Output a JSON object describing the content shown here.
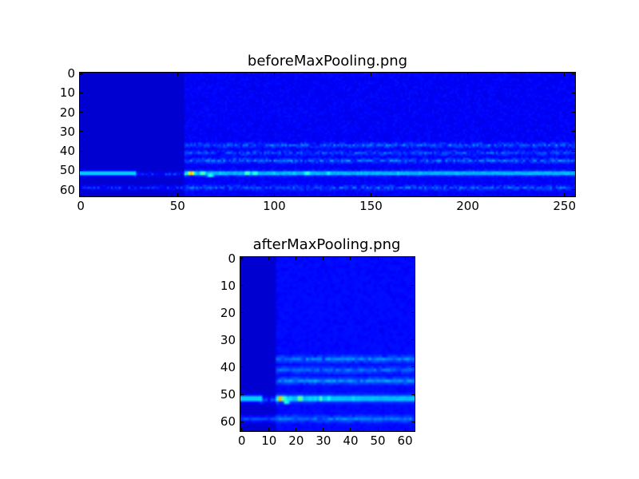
{
  "chart_data": [
    {
      "type": "heatmap",
      "title": "beforeMaxPooling.png",
      "colormap": "jet",
      "shape": [
        64,
        256
      ],
      "xlim": [
        -0.5,
        255.5
      ],
      "ylim": [
        63.5,
        -0.5
      ],
      "xticks": [
        0,
        50,
        100,
        150,
        200,
        250
      ],
      "yticks": [
        0,
        10,
        20,
        30,
        40,
        50,
        60
      ],
      "grid": false,
      "features": {
        "background": 0.08,
        "background_after_col": 54,
        "background_right": 0.12,
        "bands": [
          {
            "row": 51.5,
            "x_from": 0,
            "x_to": 28,
            "value": 0.38
          },
          {
            "row": 52,
            "x_from": 28,
            "x_to": 54,
            "value": 0.16
          },
          {
            "row": 51.5,
            "x_from": 54,
            "x_to": 255,
            "value": 0.3
          },
          {
            "row": 59,
            "x_from": 0,
            "x_to": 255,
            "value": 0.16
          },
          {
            "row": 37,
            "x_from": 54,
            "x_to": 255,
            "value": 0.17
          },
          {
            "row": 41,
            "x_from": 54,
            "x_to": 255,
            "value": 0.15
          },
          {
            "row": 45,
            "x_from": 54,
            "x_to": 255,
            "value": 0.18
          }
        ],
        "hotspots": [
          {
            "x": 57,
            "y": 51.5,
            "value": 0.92
          },
          {
            "x": 63,
            "y": 51.5,
            "value": 0.62
          },
          {
            "x": 67,
            "y": 52.5,
            "value": 0.55
          },
          {
            "x": 72,
            "y": 51.5,
            "value": 0.45
          },
          {
            "x": 86,
            "y": 51.5,
            "value": 0.62
          },
          {
            "x": 90,
            "y": 51.5,
            "value": 0.58
          },
          {
            "x": 100,
            "y": 51.5,
            "value": 0.45
          },
          {
            "x": 110,
            "y": 51.5,
            "value": 0.45
          },
          {
            "x": 117,
            "y": 51.5,
            "value": 0.58
          },
          {
            "x": 128,
            "y": 51.5,
            "value": 0.5
          },
          {
            "x": 145,
            "y": 51.5,
            "value": 0.42
          },
          {
            "x": 164,
            "y": 51.5,
            "value": 0.45
          },
          {
            "x": 175,
            "y": 51.5,
            "value": 0.42
          },
          {
            "x": 195,
            "y": 51.5,
            "value": 0.38
          },
          {
            "x": 222,
            "y": 51.5,
            "value": 0.36
          },
          {
            "x": 248,
            "y": 51.5,
            "value": 0.36
          }
        ]
      }
    },
    {
      "type": "heatmap",
      "title": "afterMaxPooling.png",
      "colormap": "jet",
      "shape": [
        64,
        64
      ],
      "xlim": [
        -0.5,
        63.5
      ],
      "ylim": [
        63.5,
        -0.5
      ],
      "xticks": [
        0,
        10,
        20,
        30,
        40,
        50,
        60
      ],
      "yticks": [
        0,
        10,
        20,
        30,
        40,
        50,
        60
      ],
      "grid": false,
      "derived_from": "beforeMaxPooling.png",
      "pooling": [
        1,
        4
      ]
    }
  ]
}
